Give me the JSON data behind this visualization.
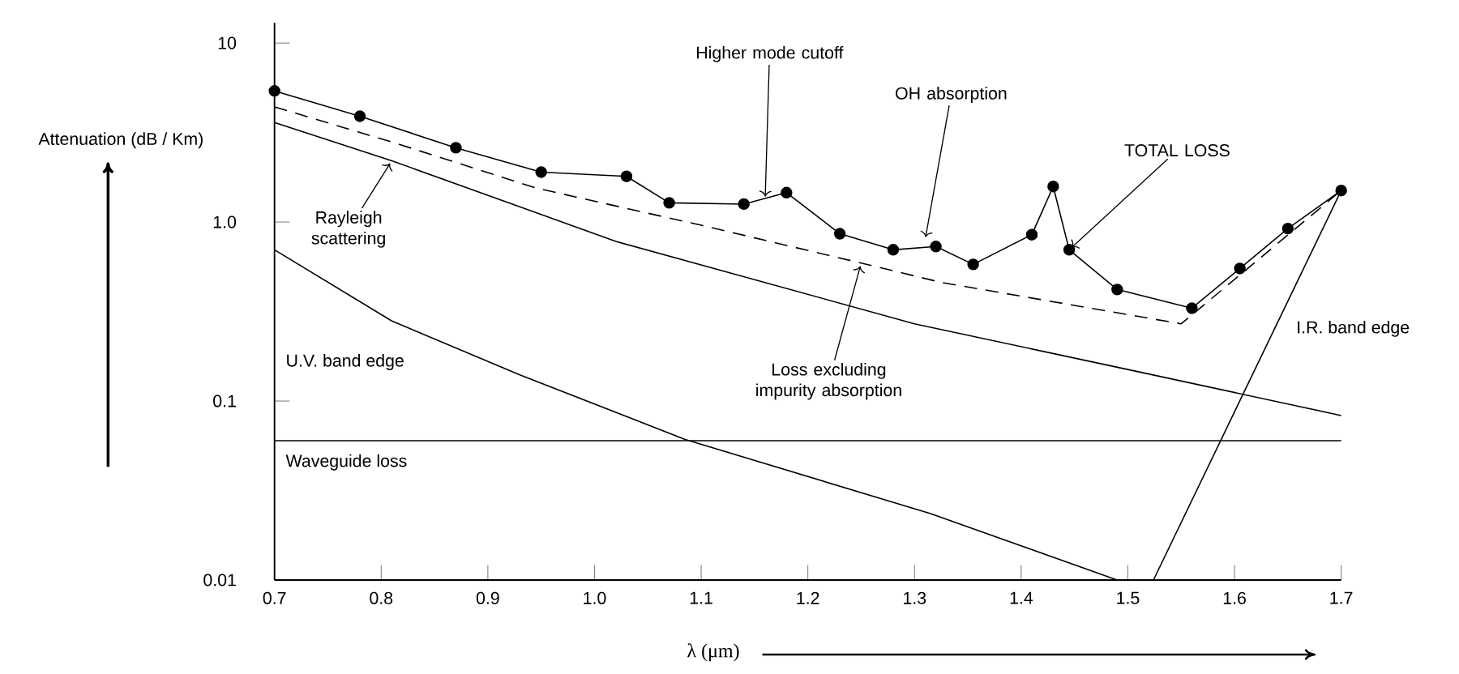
{
  "chart_data": {
    "type": "line",
    "xlabel": "λ (μm)",
    "ylabel": "Attenuation (dB / Km)",
    "log": "y",
    "xlim": [
      0.7,
      1.7
    ],
    "ylim": [
      0.01,
      13
    ],
    "xticks": [
      0.7,
      0.8,
      0.9,
      {
        "value": 1,
        "label": "1.0"
      },
      1.1,
      1.2,
      1.3,
      1.4,
      1.5,
      1.6,
      1.7
    ],
    "yticks": [
      0.01,
      0.1,
      {
        "value": 1,
        "label": "1.0"
      },
      10
    ],
    "series": [
      {
        "name": "TOTAL LOSS",
        "color": "#000000",
        "marker": "circle",
        "line_style": "solid",
        "x": [
          0.7,
          0.78,
          0.87,
          0.95,
          1.03,
          1.07,
          1.14,
          1.18,
          1.23,
          1.28,
          1.32,
          1.355,
          1.41,
          1.43,
          1.445,
          1.49,
          1.56,
          1.605,
          1.65,
          1.7
        ],
        "values": [
          5.4,
          3.9,
          2.6,
          1.9,
          1.8,
          1.28,
          1.26,
          1.46,
          0.86,
          0.7,
          0.73,
          0.58,
          0.85,
          1.58,
          0.7,
          0.42,
          0.33,
          0.55,
          0.92,
          1.5
        ]
      },
      {
        "name": "Loss excluding impurity absorption",
        "color": "#000000",
        "line_style": "dashed",
        "x": [
          0.7,
          0.81,
          0.945,
          1.1,
          1.25,
          1.325,
          1.55,
          1.7
        ],
        "values": [
          4.4,
          2.8,
          1.55,
          0.96,
          0.59,
          0.46,
          0.27,
          1.5
        ]
      },
      {
        "name": "Rayleigh scattering",
        "color": "#000000",
        "line_style": "solid",
        "x": [
          0.7,
          0.81,
          1.02,
          1.3,
          1.5,
          1.7
        ],
        "values": [
          3.6,
          2.2,
          0.78,
          0.27,
          0.15,
          0.083
        ]
      },
      {
        "name": "U.V. band edge",
        "color": "#000000",
        "line_style": "solid",
        "x": [
          0.7,
          0.81,
          0.93,
          1.085,
          1.315,
          1.49
        ],
        "values": [
          0.7,
          0.28,
          0.14,
          0.061,
          0.0235,
          0.01
        ]
      },
      {
        "name": "Waveguide loss",
        "color": "#000000",
        "line_style": "solid",
        "x": [
          0.7,
          1.7
        ],
        "values": [
          0.06,
          0.06
        ]
      },
      {
        "name": "I.R. band edge",
        "color": "#000000",
        "line_style": "solid",
        "x": [
          1.524,
          1.7
        ],
        "values": [
          0.01,
          1.5
        ]
      }
    ],
    "annotations": [
      {
        "text": "Higher mode cutoff",
        "x": 1.16,
        "y": 1.35
      },
      {
        "text": "OH absorption",
        "x": 1.31,
        "y": 0.8
      }
    ]
  }
}
